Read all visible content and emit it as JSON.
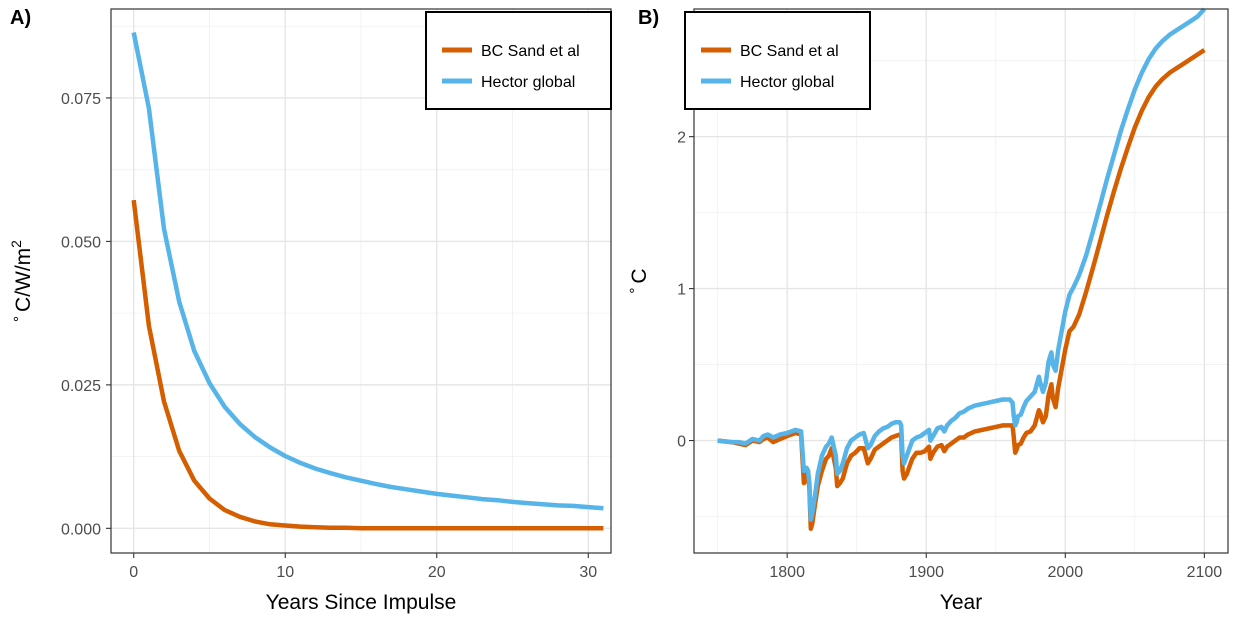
{
  "chart_data": [
    {
      "panel_label": "A)",
      "type": "line",
      "xlabel": "Years Since Impulse",
      "ylabel": "° C/W/m²",
      "ylabel_parts": {
        "degree": "°",
        "main": "C/W/m",
        "sup": "2"
      },
      "xlim": [
        -1.5,
        31.5
      ],
      "ylim": [
        -0.0043,
        0.0905
      ],
      "x_ticks": [
        0,
        10,
        20,
        30
      ],
      "x_tick_labels": [
        "0",
        "10",
        "20",
        "30"
      ],
      "y_ticks": [
        0,
        0.025,
        0.05,
        0.075
      ],
      "y_tick_labels": [
        "0.000",
        "0.025",
        "0.050",
        "0.075"
      ],
      "grid": true,
      "legend_position": "top-right",
      "series": [
        {
          "name": "BC Sand et al",
          "color": "#d55e00",
          "x": [
            0,
            1,
            2,
            3,
            4,
            5,
            6,
            7,
            8,
            9,
            10,
            11,
            12,
            13,
            14,
            15,
            16,
            17,
            18,
            19,
            20,
            21,
            22,
            23,
            24,
            25,
            26,
            27,
            28,
            29,
            30,
            31
          ],
          "y": [
            0.0572,
            0.0353,
            0.0221,
            0.0135,
            0.0083,
            0.0052,
            0.0032,
            0.002,
            0.0012,
            0.0007,
            0.0005,
            0.0003,
            0.0002,
            0.0001,
            0.0001,
            0,
            0,
            0,
            0,
            0,
            0,
            0,
            0,
            0,
            0,
            0,
            0,
            0,
            0,
            0,
            0,
            0
          ]
        },
        {
          "name": "Hector global",
          "color": "#56b4e9",
          "x": [
            0,
            1,
            2,
            3,
            4,
            5,
            6,
            7,
            8,
            9,
            10,
            11,
            12,
            13,
            14,
            15,
            16,
            17,
            18,
            19,
            20,
            21,
            22,
            23,
            24,
            25,
            26,
            27,
            28,
            29,
            30,
            31
          ],
          "y": [
            0.0864,
            0.0732,
            0.0522,
            0.0395,
            0.0309,
            0.0253,
            0.0212,
            0.0182,
            0.0159,
            0.0141,
            0.0126,
            0.0114,
            0.0104,
            0.0096,
            0.0089,
            0.0083,
            0.0077,
            0.0072,
            0.0068,
            0.0064,
            0.006,
            0.0057,
            0.0054,
            0.0051,
            0.0049,
            0.0046,
            0.0044,
            0.0042,
            0.004,
            0.0039,
            0.0037,
            0.0035
          ]
        }
      ]
    },
    {
      "panel_label": "B)",
      "type": "line",
      "xlabel": "Year",
      "ylabel": "° C",
      "ylabel_parts": {
        "degree": "°",
        "main": "C",
        "sup": ""
      },
      "xlim": [
        1733,
        2117
      ],
      "ylim": [
        -0.74,
        2.84
      ],
      "x_ticks": [
        1800,
        1900,
        2000,
        2100
      ],
      "x_tick_labels": [
        "1800",
        "1900",
        "2000",
        "2100"
      ],
      "y_ticks": [
        0,
        1,
        2
      ],
      "y_tick_labels": [
        "0",
        "1",
        "2"
      ],
      "grid": true,
      "legend_position": "top-left",
      "series": [
        {
          "name": "BC Sand et al",
          "color": "#d55e00",
          "x": [
            1750,
            1760,
            1765,
            1770,
            1775,
            1780,
            1783,
            1786,
            1790,
            1795,
            1800,
            1806,
            1810,
            1812,
            1814,
            1815,
            1816,
            1817,
            1818,
            1820,
            1822,
            1825,
            1828,
            1830,
            1832,
            1835,
            1836,
            1838,
            1840,
            1843,
            1846,
            1849,
            1852,
            1855,
            1856,
            1858,
            1860,
            1863,
            1866,
            1869,
            1872,
            1875,
            1878,
            1881,
            1882,
            1883,
            1884,
            1886,
            1888,
            1890,
            1893,
            1896,
            1899,
            1902,
            1903,
            1905,
            1908,
            1911,
            1913,
            1915,
            1918,
            1921,
            1924,
            1927,
            1930,
            1935,
            1940,
            1945,
            1950,
            1955,
            1960,
            1962,
            1963,
            1964,
            1965,
            1966,
            1968,
            1970,
            1972,
            1975,
            1978,
            1981,
            1982,
            1984,
            1986,
            1988,
            1990,
            1991,
            1993,
            1995,
            1997,
            2000,
            2003,
            2006,
            2010,
            2015,
            2020,
            2025,
            2030,
            2035,
            2040,
            2045,
            2050,
            2055,
            2060,
            2065,
            2070,
            2075,
            2080,
            2085,
            2090,
            2095,
            2100
          ],
          "y": [
            0,
            -0.01,
            -0.02,
            -0.03,
            0,
            -0.01,
            0.01,
            0.02,
            -0.01,
            0.01,
            0.03,
            0.05,
            0.04,
            -0.28,
            -0.25,
            -0.2,
            -0.32,
            -0.58,
            -0.55,
            -0.42,
            -0.3,
            -0.2,
            -0.12,
            -0.1,
            -0.05,
            -0.18,
            -0.3,
            -0.28,
            -0.25,
            -0.15,
            -0.1,
            -0.08,
            -0.05,
            -0.05,
            -0.08,
            -0.15,
            -0.12,
            -0.06,
            -0.04,
            -0.02,
            0,
            0.02,
            0.03,
            0.04,
            0.03,
            -0.2,
            -0.25,
            -0.22,
            -0.17,
            -0.12,
            -0.08,
            -0.08,
            -0.07,
            -0.04,
            -0.12,
            -0.08,
            -0.04,
            -0.03,
            -0.07,
            -0.04,
            -0.02,
            0,
            0.02,
            0.02,
            0.04,
            0.06,
            0.07,
            0.08,
            0.09,
            0.1,
            0.1,
            0.1,
            0.02,
            -0.08,
            -0.06,
            -0.03,
            -0.02,
            0.02,
            0.05,
            0.06,
            0.1,
            0.2,
            0.18,
            0.12,
            0.16,
            0.3,
            0.37,
            0.28,
            0.22,
            0.35,
            0.45,
            0.6,
            0.72,
            0.75,
            0.83,
            0.98,
            1.14,
            1.31,
            1.48,
            1.64,
            1.79,
            1.93,
            2.06,
            2.17,
            2.26,
            2.33,
            2.38,
            2.42,
            2.45,
            2.48,
            2.51,
            2.54,
            2.57
          ]
        },
        {
          "name": "Hector global",
          "color": "#56b4e9",
          "x": [
            1750,
            1760,
            1765,
            1770,
            1775,
            1780,
            1783,
            1786,
            1790,
            1795,
            1800,
            1806,
            1810,
            1812,
            1814,
            1815,
            1816,
            1817,
            1818,
            1820,
            1822,
            1825,
            1828,
            1830,
            1832,
            1835,
            1836,
            1838,
            1840,
            1843,
            1846,
            1849,
            1852,
            1855,
            1856,
            1858,
            1860,
            1863,
            1866,
            1869,
            1872,
            1875,
            1878,
            1881,
            1882,
            1883,
            1884,
            1886,
            1888,
            1890,
            1893,
            1896,
            1899,
            1902,
            1903,
            1905,
            1908,
            1911,
            1913,
            1915,
            1918,
            1921,
            1924,
            1927,
            1930,
            1935,
            1940,
            1945,
            1950,
            1955,
            1960,
            1962,
            1963,
            1964,
            1965,
            1966,
            1968,
            1970,
            1972,
            1975,
            1978,
            1981,
            1982,
            1984,
            1986,
            1988,
            1990,
            1991,
            1993,
            1995,
            1997,
            2000,
            2003,
            2006,
            2010,
            2015,
            2020,
            2025,
            2030,
            2035,
            2040,
            2045,
            2050,
            2055,
            2060,
            2065,
            2070,
            2075,
            2080,
            2085,
            2090,
            2095,
            2100
          ],
          "y": [
            0,
            -0.01,
            -0.01,
            -0.02,
            0.01,
            0,
            0.03,
            0.04,
            0.02,
            0.04,
            0.05,
            0.07,
            0.06,
            -0.2,
            -0.18,
            -0.2,
            -0.28,
            -0.52,
            -0.48,
            -0.36,
            -0.22,
            -0.1,
            -0.04,
            -0.02,
            0.02,
            -0.1,
            -0.22,
            -0.2,
            -0.15,
            -0.05,
            0,
            0.02,
            0.04,
            0.05,
            0.02,
            -0.05,
            -0.03,
            0.03,
            0.06,
            0.08,
            0.09,
            0.11,
            0.12,
            0.12,
            0.1,
            -0.1,
            -0.15,
            -0.1,
            -0.05,
            0,
            0.02,
            0.03,
            0.05,
            0.07,
            0,
            0.03,
            0.08,
            0.09,
            0.06,
            0.1,
            0.13,
            0.15,
            0.18,
            0.19,
            0.21,
            0.23,
            0.24,
            0.25,
            0.26,
            0.27,
            0.27,
            0.25,
            0.16,
            0.1,
            0.12,
            0.16,
            0.17,
            0.22,
            0.26,
            0.29,
            0.32,
            0.42,
            0.38,
            0.32,
            0.38,
            0.52,
            0.58,
            0.5,
            0.46,
            0.6,
            0.7,
            0.85,
            0.96,
            1.01,
            1.09,
            1.22,
            1.38,
            1.55,
            1.72,
            1.88,
            2.04,
            2.18,
            2.31,
            2.42,
            2.51,
            2.58,
            2.63,
            2.67,
            2.7,
            2.73,
            2.76,
            2.79,
            2.84
          ]
        }
      ]
    }
  ]
}
